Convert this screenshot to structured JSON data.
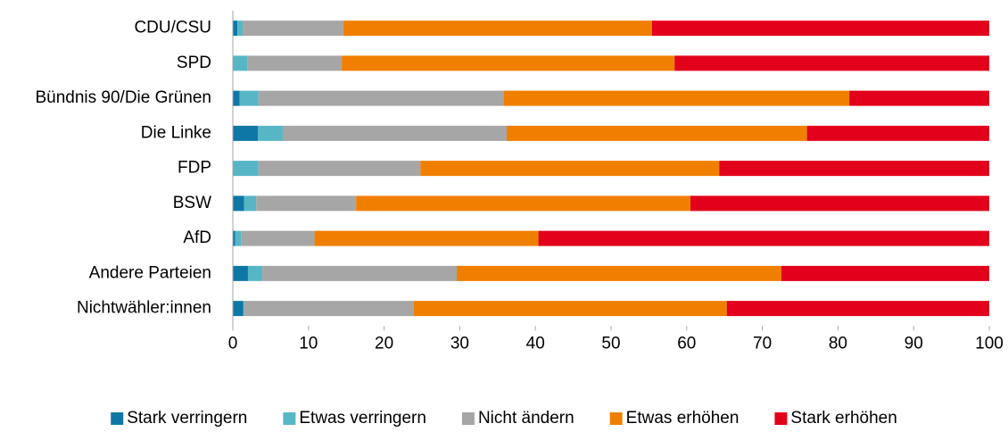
{
  "chart_data": {
    "type": "stacked_barh",
    "categories": [
      "CDU/CSU",
      "SPD",
      "Bündnis 90/Die Grünen",
      "Die Linke",
      "FDP",
      "BSW",
      "AfD",
      "Andere Parteien",
      "Nichtwähler:innen"
    ],
    "series": [
      {
        "name": "Stark verringern",
        "color": "#0f77a6",
        "values": [
          0.6,
          0,
          0.9,
          3.3,
          0,
          1.5,
          0.3,
          2.0,
          1.4
        ]
      },
      {
        "name": "Etwas verringern",
        "color": "#57b6c6",
        "values": [
          0.7,
          1.9,
          2.5,
          3.3,
          3.4,
          1.6,
          0.8,
          1.9,
          0.1
        ]
      },
      {
        "name": "Nicht ändern",
        "color": "#a6a6a6",
        "values": [
          13.3,
          12.5,
          32.4,
          29.6,
          21.4,
          13.2,
          9.7,
          25.7,
          22.4
        ]
      },
      {
        "name": "Etwas erhöhen",
        "color": "#f07f00",
        "values": [
          40.8,
          44.0,
          45.7,
          39.7,
          39.5,
          44.2,
          29.6,
          42.9,
          41.4
        ]
      },
      {
        "name": "Stark erhöhen",
        "color": "#e3001b",
        "values": [
          44.6,
          41.6,
          18.5,
          24.1,
          35.7,
          39.5,
          59.6,
          27.5,
          34.7
        ]
      }
    ],
    "xlim": [
      0,
      100
    ],
    "xticks": [
      0,
      10,
      20,
      30,
      40,
      50,
      60,
      70,
      80,
      90,
      100
    ],
    "legend": "bottom"
  }
}
